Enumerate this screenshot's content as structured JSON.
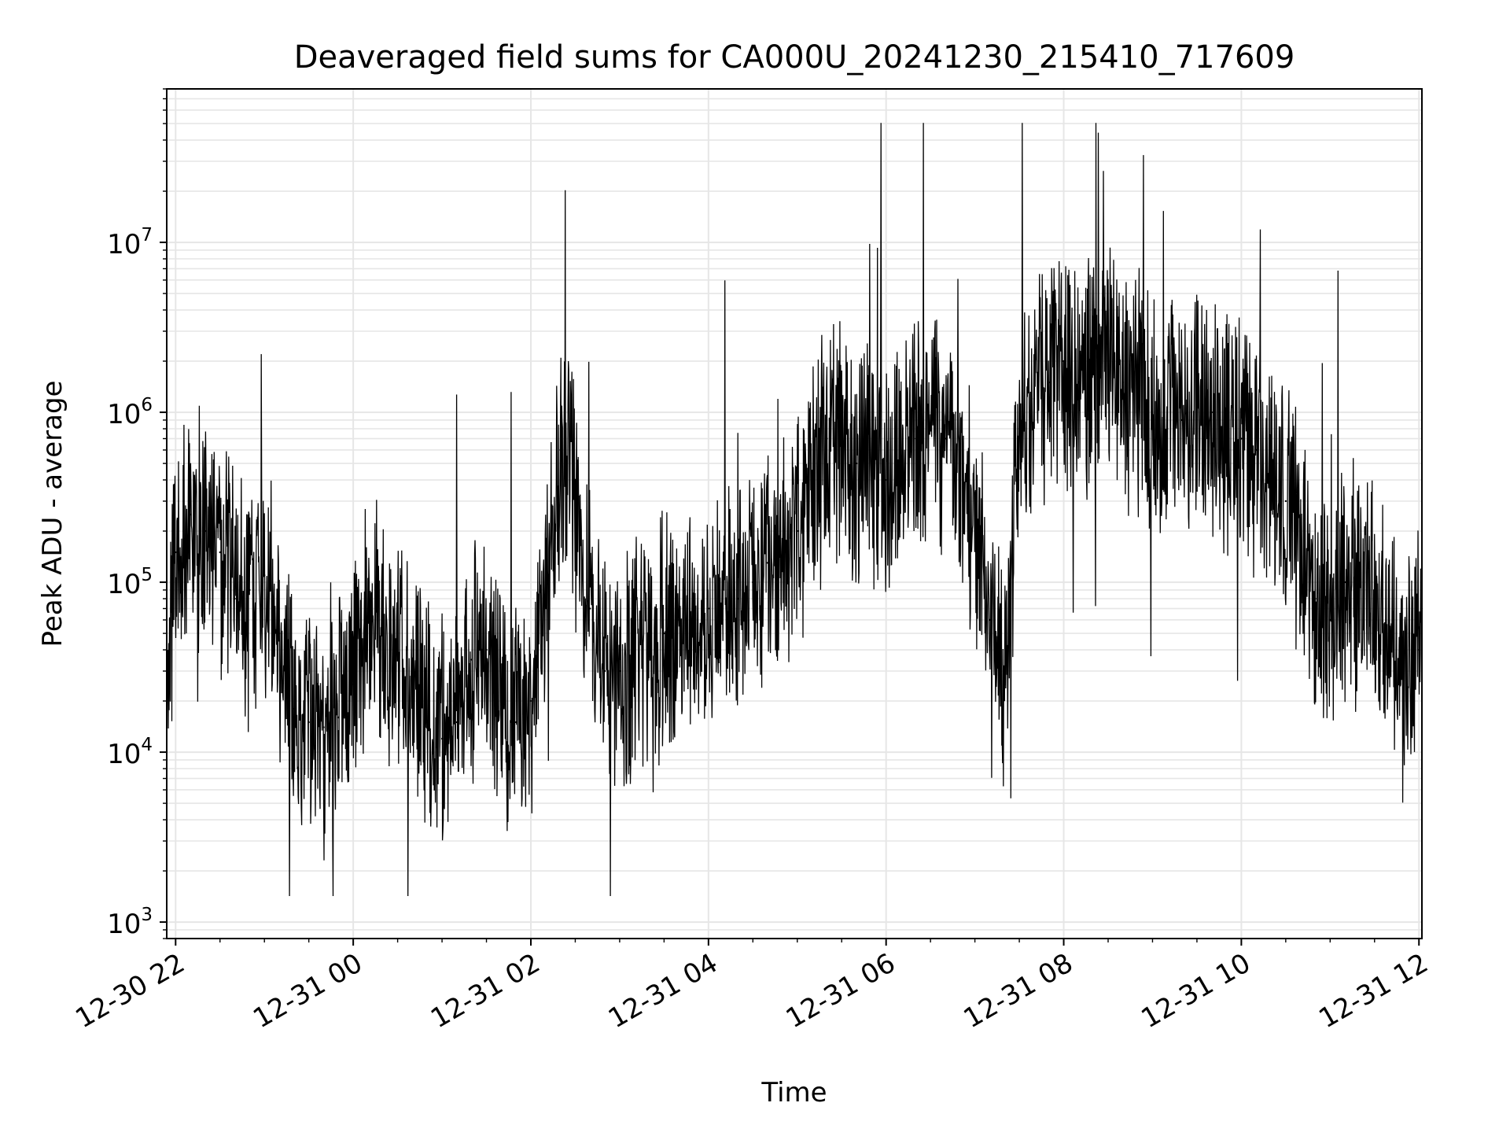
{
  "chart_data": {
    "type": "line",
    "title": "Deaveraged field sums for CA000U_20241230_215410_717609",
    "xlabel": "Time",
    "ylabel": "Peak ADU - average",
    "yscale": "log",
    "ylim": [
      800,
      80000000
    ],
    "xlim": [
      "2024-12-30 21:54",
      "2024-12-31 12:02"
    ],
    "x_ticks": [
      {
        "value": "2024-12-30 22:00",
        "label": "12-30 22"
      },
      {
        "value": "2024-12-31 00:00",
        "label": "12-31 00"
      },
      {
        "value": "2024-12-31 02:00",
        "label": "12-31 02"
      },
      {
        "value": "2024-12-31 04:00",
        "label": "12-31 04"
      },
      {
        "value": "2024-12-31 06:00",
        "label": "12-31 06"
      },
      {
        "value": "2024-12-31 08:00",
        "label": "12-31 08"
      },
      {
        "value": "2024-12-31 10:00",
        "label": "12-31 10"
      },
      {
        "value": "2024-12-31 12:00",
        "label": "12-31 12"
      }
    ],
    "y_ticks": [
      {
        "value": 1000,
        "mantissa": "10",
        "exponent": "3"
      },
      {
        "value": 10000,
        "mantissa": "10",
        "exponent": "4"
      },
      {
        "value": 100000,
        "mantissa": "10",
        "exponent": "5"
      },
      {
        "value": 1000000,
        "mantissa": "10",
        "exponent": "6"
      },
      {
        "value": 10000000,
        "mantissa": "10",
        "exponent": "7"
      }
    ],
    "grid": true,
    "line_color": "#000000",
    "grid_color": "#e6e6e6",
    "series": [
      {
        "x": [
          "2024-12-30 21:54",
          "2024-12-30 22:00",
          "2024-12-30 22:10",
          "2024-12-30 22:20",
          "2024-12-30 22:30",
          "2024-12-30 22:40",
          "2024-12-30 22:50",
          "2024-12-30 23:00",
          "2024-12-30 23:10",
          "2024-12-30 23:20",
          "2024-12-30 23:30",
          "2024-12-30 23:40",
          "2024-12-30 23:50",
          "2024-12-31 00:00",
          "2024-12-31 00:10",
          "2024-12-31 00:20",
          "2024-12-31 00:30",
          "2024-12-31 00:40",
          "2024-12-31 00:50",
          "2024-12-31 01:00",
          "2024-12-31 01:10",
          "2024-12-31 01:20",
          "2024-12-31 01:30",
          "2024-12-31 01:40",
          "2024-12-31 01:50",
          "2024-12-31 02:00",
          "2024-12-31 02:10",
          "2024-12-31 02:20",
          "2024-12-31 02:30",
          "2024-12-31 02:40",
          "2024-12-31 02:50",
          "2024-12-31 03:00",
          "2024-12-31 03:10",
          "2024-12-31 03:20",
          "2024-12-31 03:30",
          "2024-12-31 03:40",
          "2024-12-31 03:50",
          "2024-12-31 04:00",
          "2024-12-31 04:10",
          "2024-12-31 04:20",
          "2024-12-31 04:30",
          "2024-12-31 04:40",
          "2024-12-31 04:50",
          "2024-12-31 05:00",
          "2024-12-31 05:10",
          "2024-12-31 05:20",
          "2024-12-31 05:30",
          "2024-12-31 05:40",
          "2024-12-31 05:50",
          "2024-12-31 06:00",
          "2024-12-31 06:10",
          "2024-12-31 06:20",
          "2024-12-31 06:30",
          "2024-12-31 06:40",
          "2024-12-31 06:50",
          "2024-12-31 07:00",
          "2024-12-31 07:10",
          "2024-12-31 07:20",
          "2024-12-31 07:30",
          "2024-12-31 07:40",
          "2024-12-31 07:50",
          "2024-12-31 08:00",
          "2024-12-31 08:10",
          "2024-12-31 08:20",
          "2024-12-31 08:30",
          "2024-12-31 08:40",
          "2024-12-31 08:50",
          "2024-12-31 09:00",
          "2024-12-31 09:10",
          "2024-12-31 09:20",
          "2024-12-31 09:30",
          "2024-12-31 09:40",
          "2024-12-31 09:50",
          "2024-12-31 10:00",
          "2024-12-31 10:10",
          "2024-12-31 10:20",
          "2024-12-31 10:30",
          "2024-12-31 10:40",
          "2024-12-31 10:50",
          "2024-12-31 11:00",
          "2024-12-31 11:10",
          "2024-12-31 11:20",
          "2024-12-31 11:30",
          "2024-12-31 11:40",
          "2024-12-31 11:50",
          "2024-12-31 12:00",
          "2024-12-31 12:02"
        ],
        "values": [
          20000,
          150000,
          250000,
          200000,
          150000,
          80000,
          90000,
          110000,
          50000,
          18000,
          15000,
          14000,
          16000,
          25000,
          70000,
          45000,
          40000,
          30000,
          15000,
          12000,
          15000,
          35000,
          40000,
          18000,
          15000,
          20000,
          80000,
          600000,
          300000,
          70000,
          30000,
          30000,
          35000,
          40000,
          50000,
          60000,
          50000,
          70000,
          90000,
          80000,
          100000,
          130000,
          150000,
          200000,
          350000,
          700000,
          800000,
          500000,
          500000,
          400000,
          600000,
          700000,
          800000,
          700000,
          400000,
          200000,
          60000,
          25000,
          800000,
          1200000,
          1500000,
          2000000,
          1500000,
          2000000,
          2000000,
          1500000,
          1500000,
          800000,
          800000,
          900000,
          1200000,
          1000000,
          800000,
          700000,
          600000,
          400000,
          300000,
          150000,
          80000,
          60000,
          100000,
          100000,
          80000,
          50000,
          20000,
          40000,
          70000
        ]
      }
    ]
  }
}
